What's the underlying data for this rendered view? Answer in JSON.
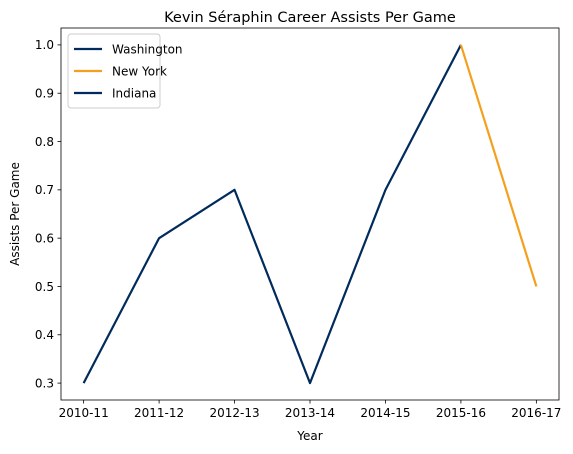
{
  "chart_data": {
    "type": "line",
    "title": "Kevin Séraphin Career Assists Per Game",
    "xlabel": "Year",
    "ylabel": "Assists Per Game",
    "categories": [
      "2010-11",
      "2011-12",
      "2012-13",
      "2013-14",
      "2014-15",
      "2015-16",
      "2016-17"
    ],
    "ylim": [
      0.265,
      1.035
    ],
    "yticks": [
      0.3,
      0.4,
      0.5,
      0.6,
      0.7,
      0.8,
      0.9,
      1.0
    ],
    "ytick_labels": [
      "0.3",
      "0.4",
      "0.5",
      "0.6",
      "0.7",
      "0.8",
      "0.9",
      "1.0"
    ],
    "grid": false,
    "legend_position": "top-left",
    "series": [
      {
        "name": "Washington",
        "color": "#002B5C",
        "x": [
          "2010-11",
          "2011-12",
          "2012-13",
          "2013-14",
          "2014-15",
          "2015-16"
        ],
        "values": [
          0.3,
          0.6,
          0.7,
          0.3,
          0.7,
          1.0
        ]
      },
      {
        "name": "New York",
        "color": "#F5A01C",
        "x": [
          "2015-16",
          "2016-17"
        ],
        "values": [
          1.0,
          0.5
        ]
      },
      {
        "name": "Indiana",
        "color": "#002B5C",
        "x": [],
        "values": []
      }
    ]
  }
}
